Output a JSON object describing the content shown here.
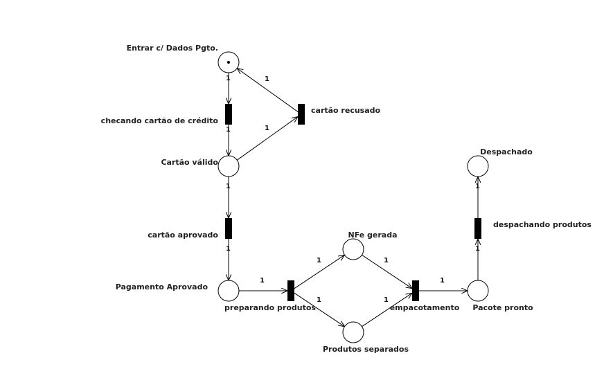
{
  "places": [
    {
      "id": "p_entrar",
      "label": "Entrar c/ Dados Pgto.",
      "tokens": 1
    },
    {
      "id": "p_valido",
      "label": "Cartão válido",
      "tokens": 0
    },
    {
      "id": "p_pag",
      "label": "Pagamento Aprovado",
      "tokens": 0
    },
    {
      "id": "p_nfe",
      "label": "NFe gerada",
      "tokens": 0
    },
    {
      "id": "p_sep",
      "label": "Produtos separados",
      "tokens": 0
    },
    {
      "id": "p_pronto",
      "label": "Pacote pronto",
      "tokens": 0
    },
    {
      "id": "p_desp",
      "label": "Despachado",
      "tokens": 0
    }
  ],
  "transitions": [
    {
      "id": "t_checando",
      "label": "checando cartão de crédito"
    },
    {
      "id": "t_recusado",
      "label": "cartão recusado"
    },
    {
      "id": "t_aprovado",
      "label": "cartão aprovado"
    },
    {
      "id": "t_preparando",
      "label": "preparando produtos"
    },
    {
      "id": "t_empac",
      "label": "empacotamento"
    },
    {
      "id": "t_despachando",
      "label": "despachando produtos"
    }
  ],
  "arcs": [
    {
      "from": "p_entrar",
      "to": "t_checando",
      "weight": "1"
    },
    {
      "from": "t_checando",
      "to": "p_valido",
      "weight": "1"
    },
    {
      "from": "p_valido",
      "to": "t_recusado",
      "weight": "1"
    },
    {
      "from": "t_recusado",
      "to": "p_entrar",
      "weight": "1"
    },
    {
      "from": "p_valido",
      "to": "t_aprovado",
      "weight": "1"
    },
    {
      "from": "t_aprovado",
      "to": "p_pag",
      "weight": "1"
    },
    {
      "from": "p_pag",
      "to": "t_preparando",
      "weight": "1"
    },
    {
      "from": "t_preparando",
      "to": "p_nfe",
      "weight": "1"
    },
    {
      "from": "t_preparando",
      "to": "p_sep",
      "weight": "1"
    },
    {
      "from": "p_nfe",
      "to": "t_empac",
      "weight": "1"
    },
    {
      "from": "p_sep",
      "to": "t_empac",
      "weight": "1"
    },
    {
      "from": "t_empac",
      "to": "p_pronto",
      "weight": "1"
    },
    {
      "from": "p_pronto",
      "to": "t_despachando",
      "weight": "1"
    },
    {
      "from": "t_despachando",
      "to": "p_desp",
      "weight": "1"
    }
  ]
}
